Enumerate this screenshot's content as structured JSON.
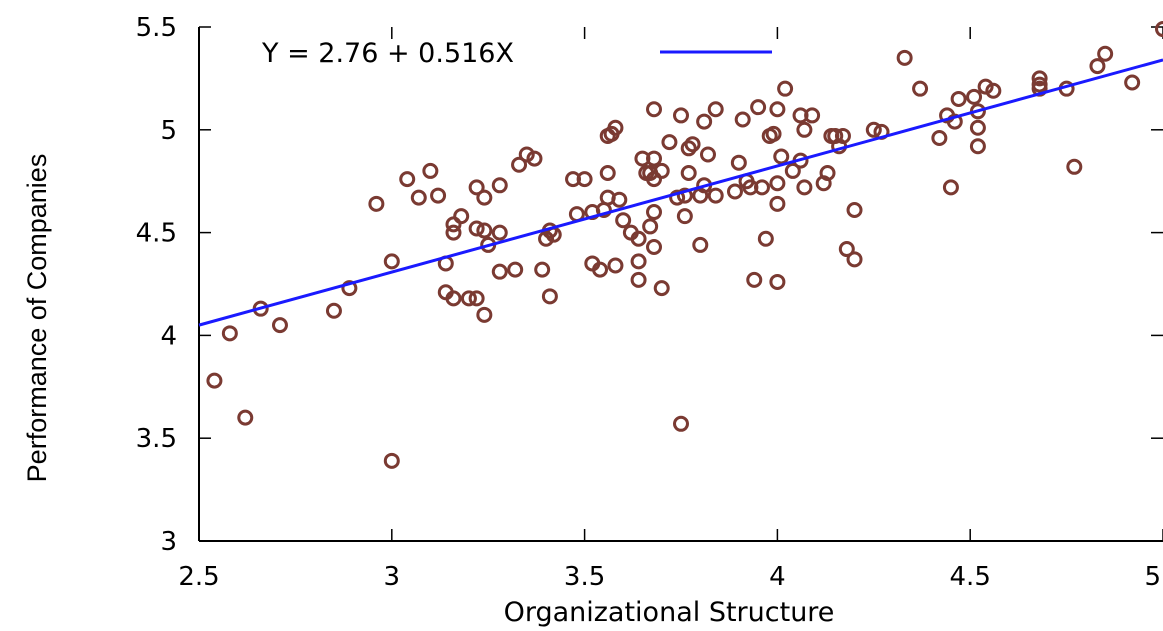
{
  "chart_data": {
    "type": "scatter",
    "xlabel": "Organizational Structure",
    "ylabel": "Performance of Companies",
    "xlim": [
      2.5,
      5.0
    ],
    "ylim": [
      3.0,
      5.5
    ],
    "x_ticks": [
      "2.5",
      "3",
      "3.5",
      "4",
      "4.5",
      "5"
    ],
    "y_ticks": [
      "3",
      "3.5",
      "4",
      "4.5",
      "5",
      "5.5"
    ],
    "x_tick_values": [
      2.5,
      3.0,
      3.5,
      4.0,
      4.5,
      5.0
    ],
    "y_tick_values": [
      3.0,
      3.5,
      4.0,
      4.5,
      5.0,
      5.5
    ],
    "grid": false,
    "legend_position": "top-left",
    "marker_color": "#7a3a32",
    "line_color": "#1a1aff",
    "regression": {
      "label": "Y = 2.76 + 0.516X",
      "intercept": 2.76,
      "slope": 0.516
    },
    "points": [
      [
        2.54,
        3.78
      ],
      [
        2.58,
        4.01
      ],
      [
        2.62,
        3.6
      ],
      [
        2.66,
        4.13
      ],
      [
        2.71,
        4.05
      ],
      [
        2.85,
        4.12
      ],
      [
        2.89,
        4.23
      ],
      [
        2.96,
        4.64
      ],
      [
        3.0,
        4.36
      ],
      [
        3.0,
        3.39
      ],
      [
        3.04,
        4.76
      ],
      [
        3.07,
        4.67
      ],
      [
        3.1,
        4.8
      ],
      [
        3.12,
        4.68
      ],
      [
        3.14,
        4.35
      ],
      [
        3.14,
        4.21
      ],
      [
        3.16,
        4.18
      ],
      [
        3.16,
        4.5
      ],
      [
        3.16,
        4.54
      ],
      [
        3.18,
        4.58
      ],
      [
        3.2,
        4.18
      ],
      [
        3.22,
        4.52
      ],
      [
        3.22,
        4.72
      ],
      [
        3.22,
        4.18
      ],
      [
        3.24,
        4.67
      ],
      [
        3.24,
        4.1
      ],
      [
        3.24,
        4.51
      ],
      [
        3.25,
        4.44
      ],
      [
        3.28,
        4.31
      ],
      [
        3.28,
        4.73
      ],
      [
        3.28,
        4.5
      ],
      [
        3.32,
        4.32
      ],
      [
        3.33,
        4.83
      ],
      [
        3.35,
        4.88
      ],
      [
        3.37,
        4.86
      ],
      [
        3.39,
        4.32
      ],
      [
        3.4,
        4.47
      ],
      [
        3.41,
        4.19
      ],
      [
        3.41,
        4.51
      ],
      [
        3.42,
        4.49
      ],
      [
        3.47,
        4.76
      ],
      [
        3.48,
        4.59
      ],
      [
        3.5,
        4.76
      ],
      [
        3.52,
        4.6
      ],
      [
        3.52,
        4.35
      ],
      [
        3.54,
        4.32
      ],
      [
        3.55,
        4.61
      ],
      [
        3.56,
        4.79
      ],
      [
        3.56,
        4.67
      ],
      [
        3.56,
        4.97
      ],
      [
        3.57,
        4.98
      ],
      [
        3.58,
        5.01
      ],
      [
        3.58,
        4.34
      ],
      [
        3.59,
        4.66
      ],
      [
        3.6,
        4.56
      ],
      [
        3.62,
        4.5
      ],
      [
        3.64,
        4.47
      ],
      [
        3.64,
        4.36
      ],
      [
        3.64,
        4.27
      ],
      [
        3.65,
        4.86
      ],
      [
        3.66,
        4.79
      ],
      [
        3.67,
        4.79
      ],
      [
        3.67,
        4.53
      ],
      [
        3.68,
        4.76
      ],
      [
        3.68,
        4.86
      ],
      [
        3.68,
        4.6
      ],
      [
        3.68,
        4.43
      ],
      [
        3.68,
        5.1
      ],
      [
        3.7,
        4.8
      ],
      [
        3.7,
        4.23
      ],
      [
        3.72,
        4.94
      ],
      [
        3.74,
        4.67
      ],
      [
        3.75,
        5.07
      ],
      [
        3.75,
        3.57
      ],
      [
        3.76,
        4.68
      ],
      [
        3.76,
        4.58
      ],
      [
        3.77,
        4.91
      ],
      [
        3.77,
        4.79
      ],
      [
        3.78,
        4.93
      ],
      [
        3.8,
        4.44
      ],
      [
        3.8,
        4.68
      ],
      [
        3.81,
        5.04
      ],
      [
        3.81,
        4.73
      ],
      [
        3.82,
        4.88
      ],
      [
        3.84,
        4.68
      ],
      [
        3.84,
        5.1
      ],
      [
        3.89,
        4.7
      ],
      [
        3.9,
        4.84
      ],
      [
        3.91,
        5.05
      ],
      [
        3.92,
        4.75
      ],
      [
        3.93,
        4.72
      ],
      [
        3.94,
        4.27
      ],
      [
        3.95,
        5.11
      ],
      [
        3.96,
        4.72
      ],
      [
        3.97,
        4.47
      ],
      [
        3.98,
        4.97
      ],
      [
        3.99,
        4.98
      ],
      [
        4.0,
        5.1
      ],
      [
        4.0,
        4.74
      ],
      [
        4.0,
        4.64
      ],
      [
        4.0,
        4.26
      ],
      [
        4.01,
        4.87
      ],
      [
        4.02,
        5.2
      ],
      [
        4.04,
        4.8
      ],
      [
        4.06,
        5.07
      ],
      [
        4.06,
        4.85
      ],
      [
        4.07,
        4.72
      ],
      [
        4.07,
        5.0
      ],
      [
        4.09,
        5.07
      ],
      [
        4.12,
        4.74
      ],
      [
        4.13,
        4.79
      ],
      [
        4.14,
        4.97
      ],
      [
        4.15,
        4.97
      ],
      [
        4.16,
        4.92
      ],
      [
        4.17,
        4.97
      ],
      [
        4.18,
        4.42
      ],
      [
        4.2,
        4.37
      ],
      [
        4.2,
        4.61
      ],
      [
        4.25,
        5.0
      ],
      [
        4.27,
        4.99
      ],
      [
        4.33,
        5.35
      ],
      [
        4.37,
        5.2
      ],
      [
        4.42,
        4.96
      ],
      [
        4.44,
        5.07
      ],
      [
        4.45,
        4.72
      ],
      [
        4.46,
        5.04
      ],
      [
        4.47,
        5.15
      ],
      [
        4.51,
        5.16
      ],
      [
        4.52,
        5.01
      ],
      [
        4.52,
        4.92
      ],
      [
        4.52,
        5.09
      ],
      [
        4.54,
        5.21
      ],
      [
        4.56,
        5.19
      ],
      [
        4.68,
        5.25
      ],
      [
        4.68,
        5.2
      ],
      [
        4.68,
        5.22
      ],
      [
        4.75,
        5.2
      ],
      [
        4.77,
        4.82
      ],
      [
        4.83,
        5.31
      ],
      [
        4.85,
        5.37
      ],
      [
        4.92,
        5.23
      ],
      [
        5.0,
        5.49
      ]
    ]
  }
}
